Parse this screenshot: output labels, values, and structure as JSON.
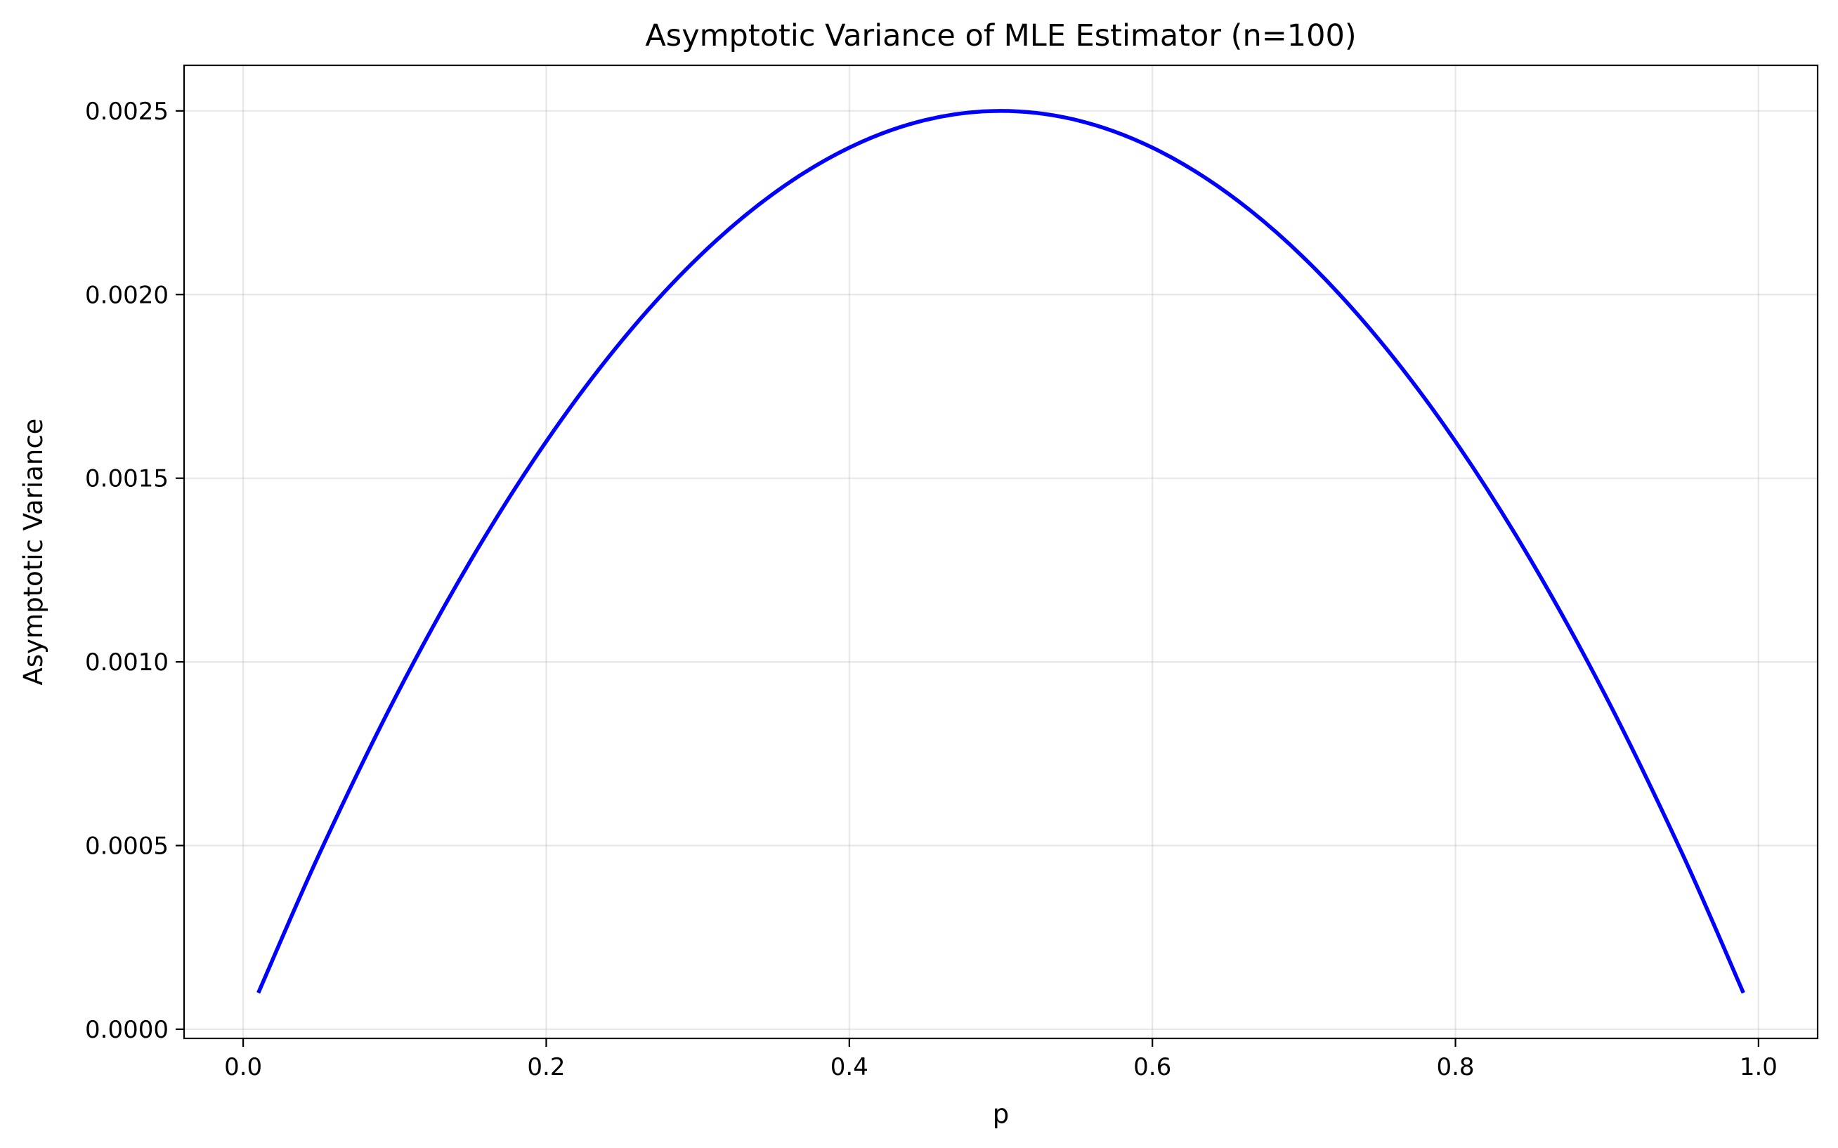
{
  "chart_data": {
    "type": "line",
    "title": "Asymptotic Variance of MLE Estimator (n=100)",
    "xlabel": "p",
    "ylabel": "Asymptotic Variance",
    "xlim": [
      -0.039,
      1.039
    ],
    "ylim": [
      -2.5e-05,
      0.002624
    ],
    "grid": true,
    "legend": "none",
    "x_ticks": [
      0.0,
      0.2,
      0.4,
      0.6,
      0.8,
      1.0
    ],
    "x_tick_labels": [
      "0.0",
      "0.2",
      "0.4",
      "0.6",
      "0.8",
      "1.0"
    ],
    "y_ticks": [
      0.0,
      0.0005,
      0.001,
      0.0015,
      0.002,
      0.0025
    ],
    "y_tick_labels": [
      "0.0000",
      "0.0005",
      "0.0010",
      "0.0015",
      "0.0020",
      "0.0025"
    ],
    "series": [
      {
        "color": "#0000ff",
        "x": [
          0.01,
          0.05,
          0.1,
          0.15,
          0.2,
          0.25,
          0.3,
          0.35,
          0.4,
          0.45,
          0.5,
          0.55,
          0.6,
          0.65,
          0.7,
          0.75,
          0.8,
          0.85,
          0.9,
          0.95,
          0.99
        ],
        "y": [
          9.9e-05,
          0.000475,
          0.0009,
          0.001275,
          0.0016,
          0.001875,
          0.0021,
          0.002275,
          0.0024,
          0.002475,
          0.0025,
          0.002475,
          0.0024,
          0.002275,
          0.0021,
          0.001875,
          0.0016,
          0.001275,
          0.0009,
          0.000475,
          9.9e-05
        ]
      }
    ]
  }
}
